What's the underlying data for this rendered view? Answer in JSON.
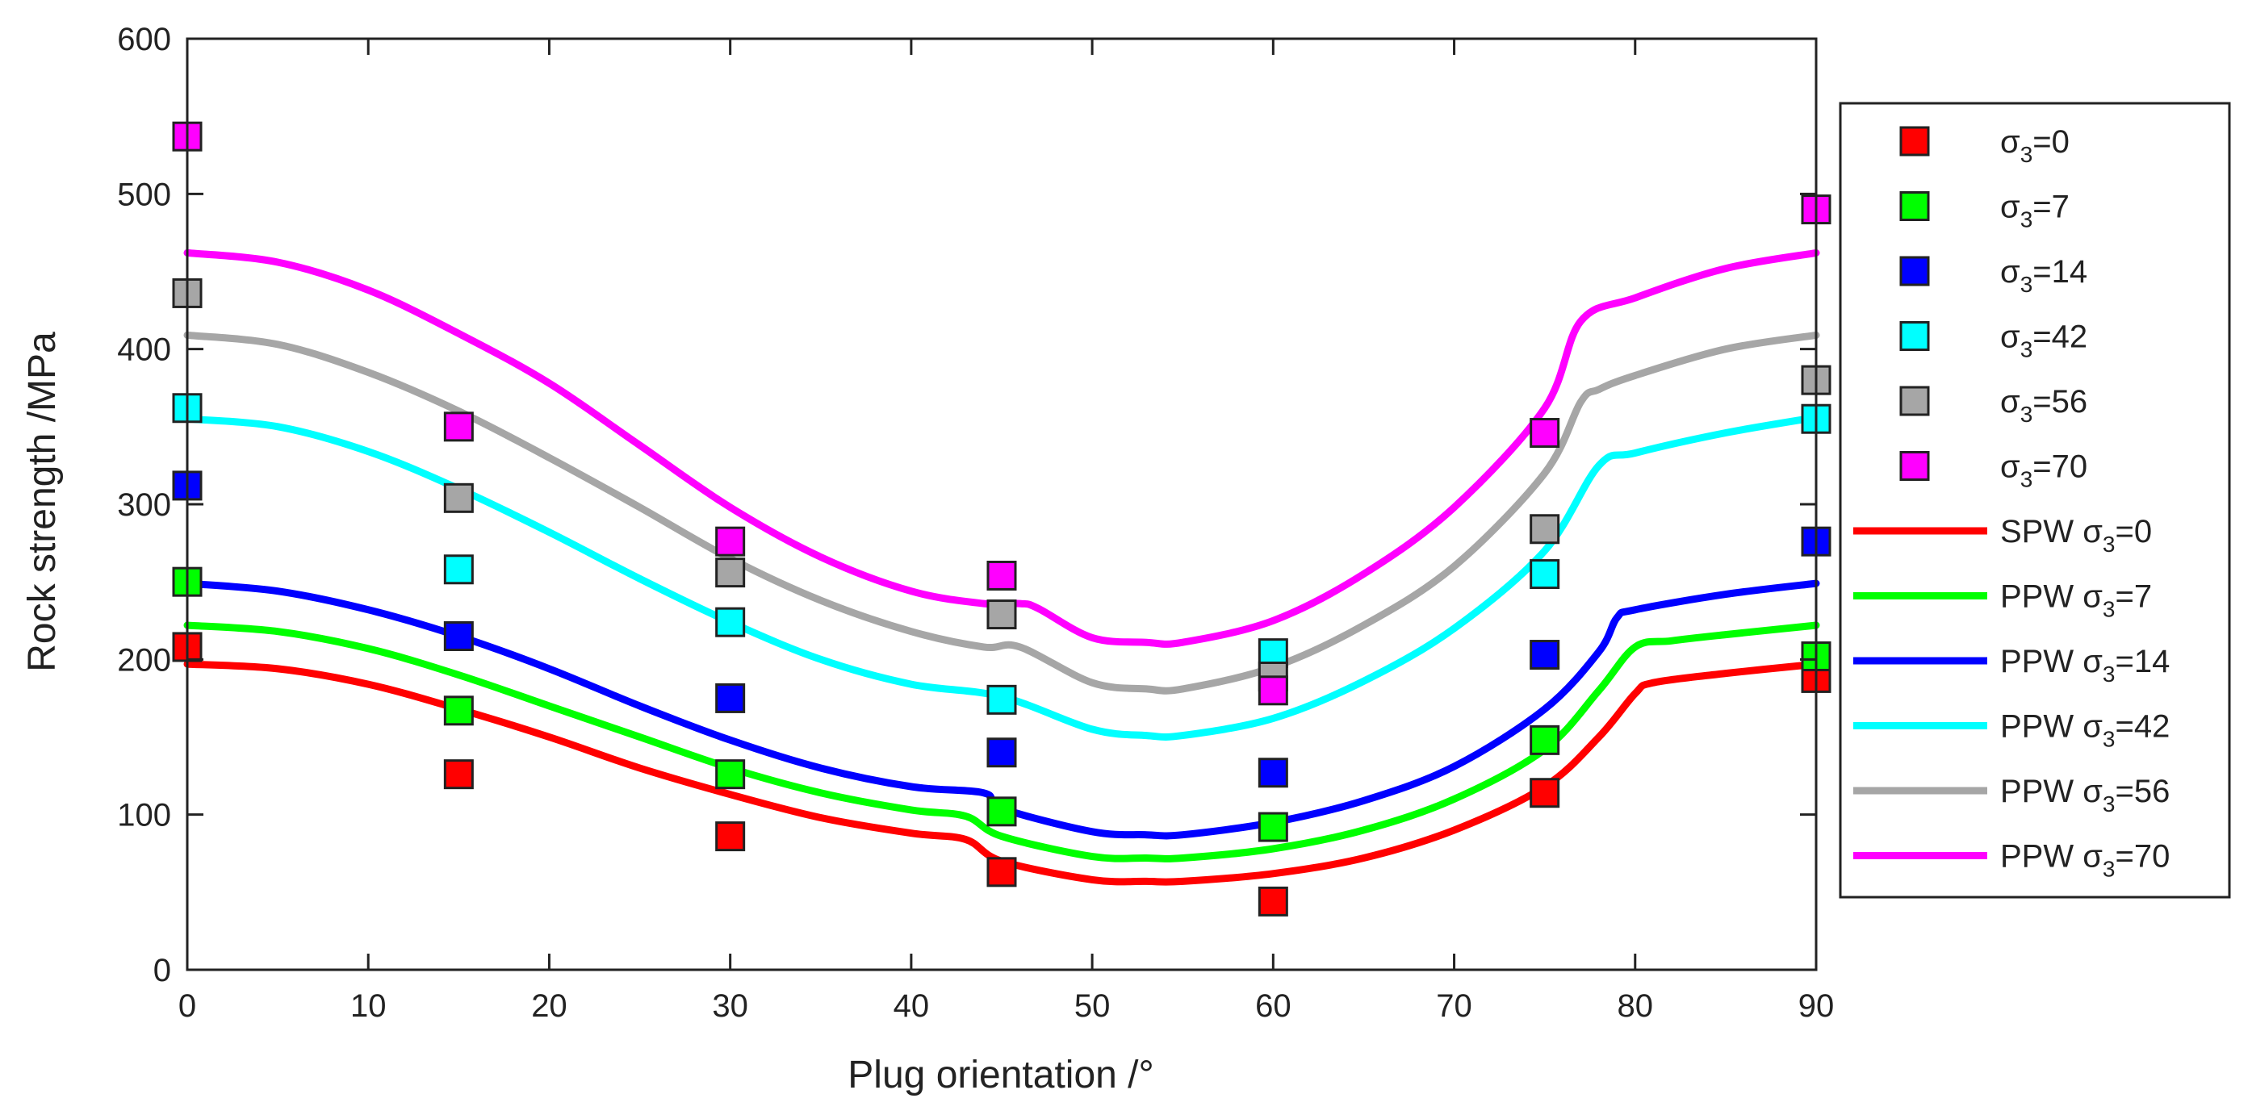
{
  "chart_data": {
    "type": "scatter",
    "title": "",
    "xlabel": "Plug orientation /°",
    "ylabel": "Rock strength /MPa",
    "xlim": [
      0,
      90
    ],
    "ylim": [
      0,
      600
    ],
    "xticks": [
      0,
      10,
      20,
      30,
      40,
      50,
      60,
      70,
      80,
      90
    ],
    "yticks": [
      0,
      100,
      200,
      300,
      400,
      500,
      600
    ],
    "legend_position": "right-outside",
    "scatter_series": [
      {
        "sigma": "0",
        "color": "#ff0000",
        "x": [
          0,
          15,
          30,
          45,
          60,
          75,
          90
        ],
        "y": [
          208,
          126,
          86,
          63,
          44,
          114,
          188
        ]
      },
      {
        "sigma": "7",
        "color": "#00ff00",
        "x": [
          0,
          15,
          30,
          45,
          60,
          75,
          90
        ],
        "y": [
          250,
          167,
          126,
          102,
          92,
          148,
          202
        ]
      },
      {
        "sigma": "14",
        "color": "#0000ff",
        "x": [
          0,
          15,
          30,
          45,
          60,
          75,
          90
        ],
        "y": [
          312,
          215,
          175,
          140,
          127,
          203,
          276
        ]
      },
      {
        "sigma": "42",
        "color": "#00ffff",
        "x": [
          0,
          15,
          30,
          45,
          60,
          75,
          90
        ],
        "y": [
          362,
          258,
          224,
          174,
          204,
          255,
          355
        ]
      },
      {
        "sigma": "56",
        "color": "#a6a6a6",
        "x": [
          0,
          15,
          30,
          45,
          60,
          75,
          90
        ],
        "y": [
          436,
          304,
          256,
          229,
          189,
          284,
          380
        ]
      },
      {
        "sigma": "70",
        "color": "#ff00ff",
        "x": [
          0,
          15,
          30,
          45,
          60,
          75,
          90
        ],
        "y": [
          537,
          350,
          276,
          254,
          180,
          346,
          490
        ]
      }
    ],
    "line_series": [
      {
        "prefix": "SPW",
        "sigma": "0",
        "color": "#ff0000",
        "x": [
          0,
          5,
          10,
          15,
          20,
          25,
          30,
          35,
          40,
          43,
          45,
          50,
          53,
          55,
          60,
          65,
          70,
          75,
          78,
          80,
          81,
          85,
          90
        ],
        "y": [
          197,
          194,
          184,
          168,
          150,
          130,
          113,
          98,
          88,
          84,
          70,
          58,
          57,
          57,
          62,
          72,
          90,
          118,
          150,
          178,
          185,
          191,
          197
        ]
      },
      {
        "prefix": "PPW",
        "sigma": "7",
        "color": "#00ff00",
        "x": [
          0,
          5,
          10,
          15,
          20,
          25,
          30,
          35,
          40,
          43,
          45,
          50,
          53,
          55,
          60,
          65,
          70,
          75,
          78,
          80,
          82,
          85,
          90
        ],
        "y": [
          222,
          218,
          207,
          190,
          170,
          150,
          130,
          114,
          103,
          99,
          86,
          73,
          72,
          72,
          78,
          90,
          110,
          142,
          180,
          208,
          212,
          216,
          222
        ]
      },
      {
        "prefix": "PPW",
        "sigma": "14",
        "color": "#0000ff",
        "x": [
          0,
          5,
          10,
          15,
          20,
          25,
          30,
          35,
          40,
          44,
          45,
          50,
          53,
          55,
          60,
          65,
          70,
          75,
          78,
          79,
          80,
          85,
          90
        ],
        "y": [
          249,
          244,
          232,
          215,
          194,
          170,
          148,
          130,
          118,
          114,
          104,
          89,
          87,
          87,
          95,
          109,
          131,
          168,
          205,
          227,
          232,
          242,
          249
        ]
      },
      {
        "prefix": "PPW",
        "sigma": "42",
        "color": "#00ffff",
        "x": [
          0,
          5,
          10,
          15,
          20,
          25,
          30,
          35,
          40,
          45,
          50,
          53,
          55,
          60,
          65,
          70,
          75,
          78,
          80,
          85,
          90
        ],
        "y": [
          355,
          350,
          334,
          310,
          282,
          252,
          224,
          200,
          184,
          176,
          155,
          151,
          151,
          162,
          186,
          220,
          270,
          325,
          333,
          346,
          356
        ]
      },
      {
        "prefix": "PPW",
        "sigma": "56",
        "color": "#a6a6a6",
        "x": [
          0,
          5,
          10,
          15,
          20,
          25,
          30,
          35,
          40,
          44,
          46,
          50,
          53,
          55,
          60,
          65,
          70,
          75,
          77,
          78,
          80,
          85,
          90
        ],
        "y": [
          409,
          403,
          385,
          360,
          330,
          298,
          265,
          238,
          218,
          208,
          208,
          185,
          181,
          181,
          195,
          222,
          260,
          320,
          366,
          374,
          383,
          400,
          409
        ]
      },
      {
        "prefix": "PPW",
        "sigma": "70",
        "color": "#ff00ff",
        "x": [
          0,
          5,
          10,
          15,
          20,
          25,
          30,
          35,
          40,
          44,
          46,
          47,
          50,
          53,
          55,
          60,
          65,
          70,
          75,
          77,
          80,
          85,
          90
        ],
        "y": [
          462,
          456,
          438,
          410,
          378,
          338,
          298,
          266,
          244,
          236,
          236,
          233,
          214,
          211,
          211,
          225,
          255,
          298,
          362,
          418,
          433,
          452,
          462
        ]
      }
    ],
    "legend": {
      "scatter_prefix": "σ",
      "scatter_sub": "3",
      "eq": "="
    }
  }
}
